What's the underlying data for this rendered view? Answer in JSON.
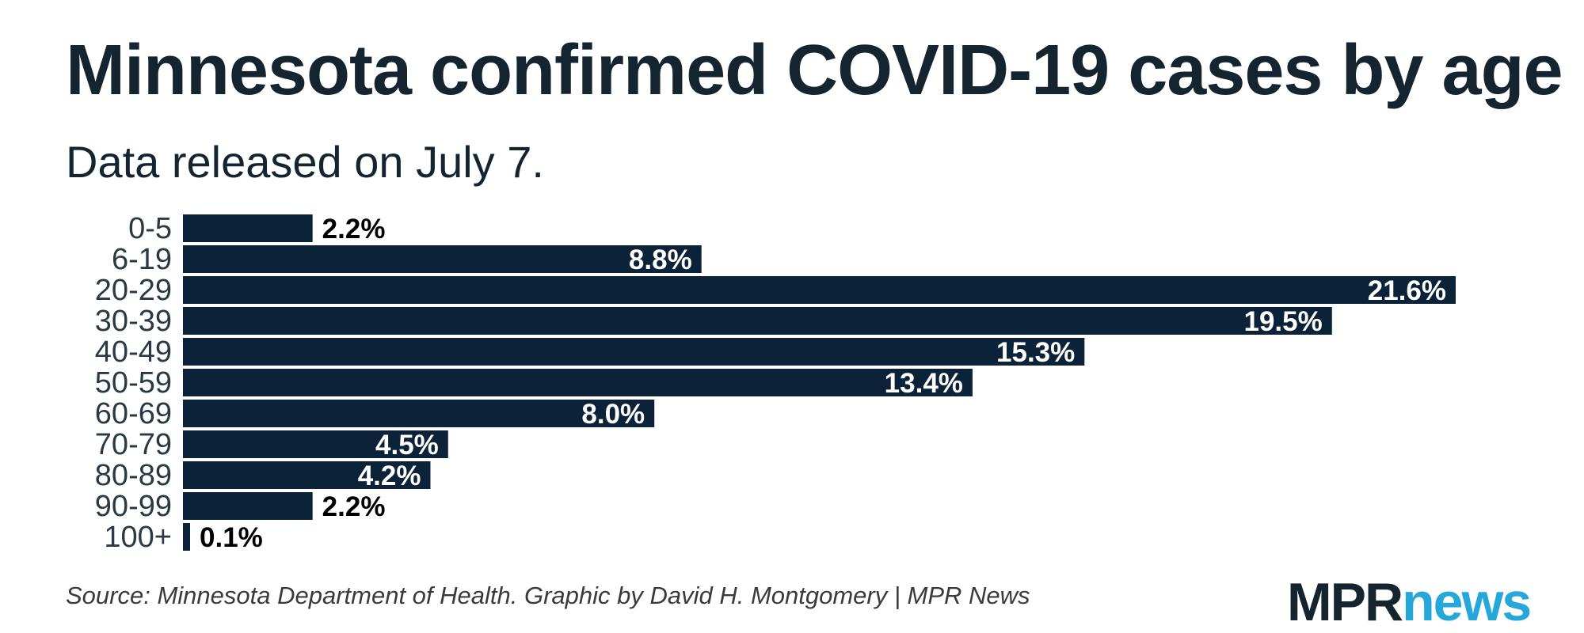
{
  "title": "Minnesota confirmed COVID-19 cases by age",
  "subtitle": "Data released on July 7.",
  "source": "Source: Minnesota Department of Health. Graphic by David H. Montgomery | MPR News",
  "logo": {
    "part1": "MPR",
    "part2": "news"
  },
  "colors": {
    "bar": "#0b2239",
    "text": "#142530",
    "accent": "#26a7d9"
  },
  "chart_data": {
    "type": "bar",
    "orientation": "horizontal",
    "title": "Minnesota confirmed COVID-19 cases by age",
    "subtitle": "Data released on July 7.",
    "xlabel": "",
    "ylabel": "",
    "xlim": [
      0,
      21.6
    ],
    "categories": [
      "0-5",
      "6-19",
      "20-29",
      "30-39",
      "40-49",
      "50-59",
      "60-69",
      "70-79",
      "80-89",
      "90-99",
      "100+"
    ],
    "values": [
      2.2,
      8.8,
      21.6,
      19.5,
      15.3,
      13.4,
      8.0,
      4.5,
      4.2,
      2.2,
      0.1
    ],
    "labels": [
      "2.2%",
      "8.8%",
      "21.6%",
      "19.5%",
      "15.3%",
      "13.4%",
      "8.0%",
      "4.5%",
      "4.2%",
      "2.2%",
      "0.1%"
    ],
    "units": "%",
    "grid": false,
    "legend": "none"
  }
}
